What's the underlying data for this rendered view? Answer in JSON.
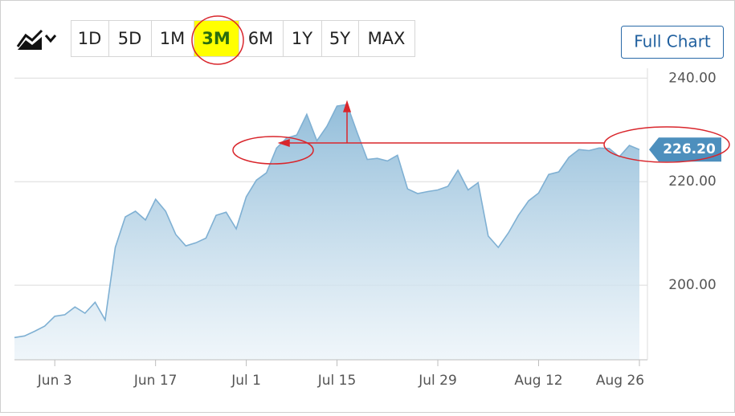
{
  "chart_data": {
    "type": "area",
    "range_buttons": [
      "1D",
      "5D",
      "1M",
      "3M",
      "6M",
      "1Y",
      "5Y",
      "MAX"
    ],
    "selected_range": "3M",
    "full_chart_button": "Full Chart",
    "categories": [
      null,
      null,
      null,
      null,
      "Jun 3",
      null,
      null,
      null,
      null,
      null,
      null,
      null,
      null,
      null,
      "Jun 17",
      null,
      null,
      null,
      null,
      null,
      null,
      null,
      null,
      "Jul 1",
      null,
      null,
      null,
      null,
      null,
      null,
      null,
      null,
      "Jul 15",
      null,
      null,
      null,
      null,
      null,
      null,
      null,
      null,
      null,
      "Jul 29",
      null,
      null,
      null,
      null,
      null,
      null,
      null,
      null,
      null,
      "Aug 12",
      null,
      null,
      null,
      null,
      null,
      null,
      null,
      null,
      null,
      "Aug 26"
    ],
    "values": [
      189.9,
      190.2,
      191.1,
      192.1,
      194.0,
      194.3,
      195.8,
      194.6,
      196.7,
      193.3,
      207.3,
      213.2,
      214.3,
      212.6,
      216.6,
      214.3,
      209.8,
      207.6,
      208.2,
      209.1,
      213.5,
      214.1,
      210.9,
      217.1,
      220.3,
      221.7,
      226.5,
      228.4,
      229.0,
      233.0,
      227.9,
      230.7,
      234.6,
      234.9,
      229.5,
      224.3,
      224.5,
      224.0,
      225.1,
      218.6,
      217.7,
      218.1,
      218.4,
      219.1,
      222.2,
      218.4,
      219.8,
      209.5,
      207.3,
      210.1,
      213.5,
      216.3,
      217.8,
      221.4,
      221.9,
      224.7,
      226.2,
      226.0,
      226.5,
      226.4,
      224.8,
      227.0,
      226.2
    ],
    "last_value": {
      "value": 226.2,
      "label": "226.20"
    },
    "color": "#7fb0d3",
    "ylim": [
      185.6,
      241.9
    ],
    "yticks": [
      {
        "value": 200,
        "label": "200.00"
      },
      {
        "value": 220,
        "label": "220.00"
      },
      {
        "value": 240,
        "label": "240.00"
      }
    ],
    "grid": true
  }
}
